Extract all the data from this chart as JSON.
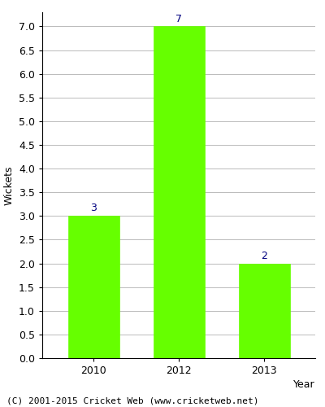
{
  "categories": [
    "2010",
    "2012",
    "2013"
  ],
  "values": [
    3,
    7,
    2
  ],
  "bar_color": "#66ff00",
  "bar_edge_color": "#66ff00",
  "label_color": "#000080",
  "label_fontsize": 9,
  "xlabel": "Year",
  "ylabel": "Wickets",
  "ylim": [
    0,
    7.3
  ],
  "ytick_step": 0.5,
  "footer": "(C) 2001-2015 Cricket Web (www.cricketweb.net)",
  "footer_fontsize": 8,
  "grid_color": "#bbbbbb",
  "axis_fontsize": 9,
  "xlabel_fontsize": 9,
  "ylabel_fontsize": 9,
  "background_color": "#ffffff",
  "bar_width": 0.6
}
